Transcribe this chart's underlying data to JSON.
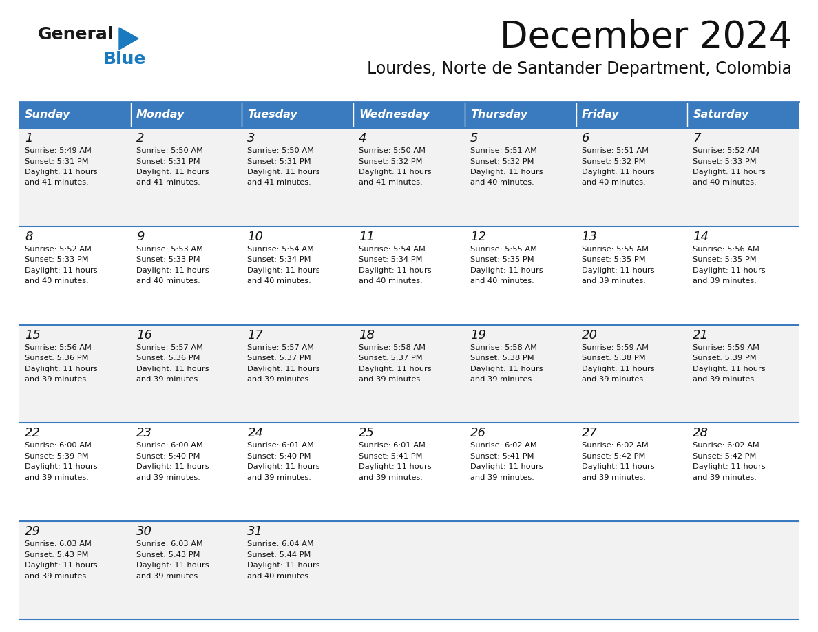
{
  "title": "December 2024",
  "subtitle": "Lourdes, Norte de Santander Department, Colombia",
  "header_bg": "#3a7abf",
  "header_text": "#ffffff",
  "row_bg_odd": "#f2f2f2",
  "row_bg_even": "#ffffff",
  "separator_color": "#3a7abf",
  "day_headers": [
    "Sunday",
    "Monday",
    "Tuesday",
    "Wednesday",
    "Thursday",
    "Friday",
    "Saturday"
  ],
  "days": [
    {
      "day": 1,
      "col": 0,
      "row": 0,
      "sunrise": "5:49 AM",
      "sunset": "5:31 PM",
      "daylight": "11 hours and 41 minutes."
    },
    {
      "day": 2,
      "col": 1,
      "row": 0,
      "sunrise": "5:50 AM",
      "sunset": "5:31 PM",
      "daylight": "11 hours and 41 minutes."
    },
    {
      "day": 3,
      "col": 2,
      "row": 0,
      "sunrise": "5:50 AM",
      "sunset": "5:31 PM",
      "daylight": "11 hours and 41 minutes."
    },
    {
      "day": 4,
      "col": 3,
      "row": 0,
      "sunrise": "5:50 AM",
      "sunset": "5:32 PM",
      "daylight": "11 hours and 41 minutes."
    },
    {
      "day": 5,
      "col": 4,
      "row": 0,
      "sunrise": "5:51 AM",
      "sunset": "5:32 PM",
      "daylight": "11 hours and 40 minutes."
    },
    {
      "day": 6,
      "col": 5,
      "row": 0,
      "sunrise": "5:51 AM",
      "sunset": "5:32 PM",
      "daylight": "11 hours and 40 minutes."
    },
    {
      "day": 7,
      "col": 6,
      "row": 0,
      "sunrise": "5:52 AM",
      "sunset": "5:33 PM",
      "daylight": "11 hours and 40 minutes."
    },
    {
      "day": 8,
      "col": 0,
      "row": 1,
      "sunrise": "5:52 AM",
      "sunset": "5:33 PM",
      "daylight": "11 hours and 40 minutes."
    },
    {
      "day": 9,
      "col": 1,
      "row": 1,
      "sunrise": "5:53 AM",
      "sunset": "5:33 PM",
      "daylight": "11 hours and 40 minutes."
    },
    {
      "day": 10,
      "col": 2,
      "row": 1,
      "sunrise": "5:54 AM",
      "sunset": "5:34 PM",
      "daylight": "11 hours and 40 minutes."
    },
    {
      "day": 11,
      "col": 3,
      "row": 1,
      "sunrise": "5:54 AM",
      "sunset": "5:34 PM",
      "daylight": "11 hours and 40 minutes."
    },
    {
      "day": 12,
      "col": 4,
      "row": 1,
      "sunrise": "5:55 AM",
      "sunset": "5:35 PM",
      "daylight": "11 hours and 40 minutes."
    },
    {
      "day": 13,
      "col": 5,
      "row": 1,
      "sunrise": "5:55 AM",
      "sunset": "5:35 PM",
      "daylight": "11 hours and 39 minutes."
    },
    {
      "day": 14,
      "col": 6,
      "row": 1,
      "sunrise": "5:56 AM",
      "sunset": "5:35 PM",
      "daylight": "11 hours and 39 minutes."
    },
    {
      "day": 15,
      "col": 0,
      "row": 2,
      "sunrise": "5:56 AM",
      "sunset": "5:36 PM",
      "daylight": "11 hours and 39 minutes."
    },
    {
      "day": 16,
      "col": 1,
      "row": 2,
      "sunrise": "5:57 AM",
      "sunset": "5:36 PM",
      "daylight": "11 hours and 39 minutes."
    },
    {
      "day": 17,
      "col": 2,
      "row": 2,
      "sunrise": "5:57 AM",
      "sunset": "5:37 PM",
      "daylight": "11 hours and 39 minutes."
    },
    {
      "day": 18,
      "col": 3,
      "row": 2,
      "sunrise": "5:58 AM",
      "sunset": "5:37 PM",
      "daylight": "11 hours and 39 minutes."
    },
    {
      "day": 19,
      "col": 4,
      "row": 2,
      "sunrise": "5:58 AM",
      "sunset": "5:38 PM",
      "daylight": "11 hours and 39 minutes."
    },
    {
      "day": 20,
      "col": 5,
      "row": 2,
      "sunrise": "5:59 AM",
      "sunset": "5:38 PM",
      "daylight": "11 hours and 39 minutes."
    },
    {
      "day": 21,
      "col": 6,
      "row": 2,
      "sunrise": "5:59 AM",
      "sunset": "5:39 PM",
      "daylight": "11 hours and 39 minutes."
    },
    {
      "day": 22,
      "col": 0,
      "row": 3,
      "sunrise": "6:00 AM",
      "sunset": "5:39 PM",
      "daylight": "11 hours and 39 minutes."
    },
    {
      "day": 23,
      "col": 1,
      "row": 3,
      "sunrise": "6:00 AM",
      "sunset": "5:40 PM",
      "daylight": "11 hours and 39 minutes."
    },
    {
      "day": 24,
      "col": 2,
      "row": 3,
      "sunrise": "6:01 AM",
      "sunset": "5:40 PM",
      "daylight": "11 hours and 39 minutes."
    },
    {
      "day": 25,
      "col": 3,
      "row": 3,
      "sunrise": "6:01 AM",
      "sunset": "5:41 PM",
      "daylight": "11 hours and 39 minutes."
    },
    {
      "day": 26,
      "col": 4,
      "row": 3,
      "sunrise": "6:02 AM",
      "sunset": "5:41 PM",
      "daylight": "11 hours and 39 minutes."
    },
    {
      "day": 27,
      "col": 5,
      "row": 3,
      "sunrise": "6:02 AM",
      "sunset": "5:42 PM",
      "daylight": "11 hours and 39 minutes."
    },
    {
      "day": 28,
      "col": 6,
      "row": 3,
      "sunrise": "6:02 AM",
      "sunset": "5:42 PM",
      "daylight": "11 hours and 39 minutes."
    },
    {
      "day": 29,
      "col": 0,
      "row": 4,
      "sunrise": "6:03 AM",
      "sunset": "5:43 PM",
      "daylight": "11 hours and 39 minutes."
    },
    {
      "day": 30,
      "col": 1,
      "row": 4,
      "sunrise": "6:03 AM",
      "sunset": "5:43 PM",
      "daylight": "11 hours and 39 minutes."
    },
    {
      "day": 31,
      "col": 2,
      "row": 4,
      "sunrise": "6:04 AM",
      "sunset": "5:44 PM",
      "daylight": "11 hours and 40 minutes."
    }
  ],
  "logo_general_color": "#1a1a1a",
  "logo_blue_color": "#1a7abf",
  "logo_triangle_color": "#1a7abf",
  "title_fontsize": 38,
  "subtitle_fontsize": 17,
  "header_fontsize": 11.5,
  "day_num_fontsize": 13,
  "cell_text_fontsize": 8.2
}
